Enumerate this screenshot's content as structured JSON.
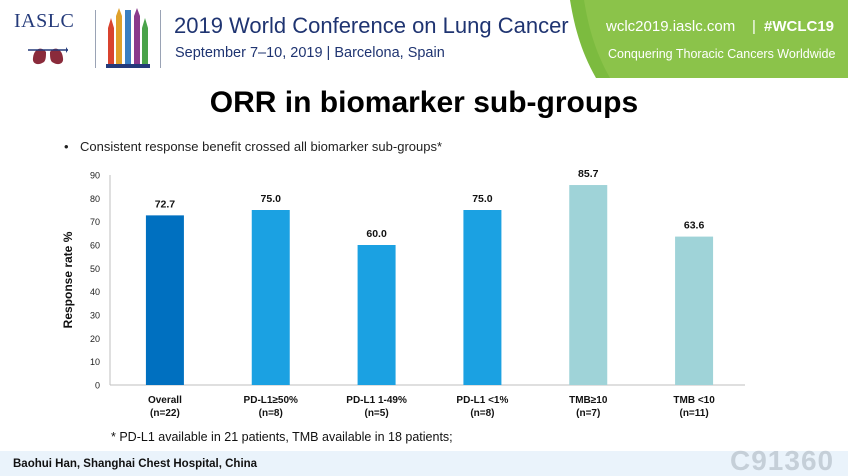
{
  "header": {
    "org_name": "IASLC",
    "conference_title": "2019 World Conference on Lung Cancer",
    "conference_subtitle": "September 7–10, 2019 | Barcelona, Spain",
    "site_url": "wclc2019.iaslc.com",
    "separator": "|",
    "hashtag": "#WCLC19",
    "tagline": "Conquering Thoracic Cancers Worldwide",
    "panel_color": "#8bc34a"
  },
  "slide": {
    "title": "ORR in biomarker sub-groups",
    "bullet": "Consistent response benefit crossed all biomarker sub-groups*",
    "bullet_marker": "•",
    "footnote": "* PD-L1 available in 21 patients, TMB available in 18 patients;"
  },
  "footer": {
    "presenter": "Baohui Han, Shanghai Chest Hospital, China",
    "watermark": "C91360"
  },
  "chart_data": {
    "type": "bar",
    "title": "",
    "xlabel": "",
    "ylabel": "Response rate %",
    "ylim": [
      0,
      90
    ],
    "yticks": [
      0,
      10,
      20,
      30,
      40,
      50,
      60,
      70,
      80,
      90
    ],
    "grid": false,
    "categories": [
      {
        "name": "Overall",
        "n": "(n=22)",
        "value": 72.7,
        "label": "72.7",
        "color": "#0070c0"
      },
      {
        "name": "PD-L1≥50%",
        "n": "(n=8)",
        "value": 75.0,
        "label": "75.0",
        "color": "#1ba1e2"
      },
      {
        "name": "PD-L1 1-49%",
        "n": "(n=5)",
        "value": 60.0,
        "label": "60.0",
        "color": "#1ba1e2"
      },
      {
        "name": "PD-L1 <1%",
        "n": "(n=8)",
        "value": 75.0,
        "label": "75.0",
        "color": "#1ba1e2"
      },
      {
        "name": "TMB≥10",
        "n": "(n=7)",
        "value": 85.7,
        "label": "85.7",
        "color": "#9fd3d8"
      },
      {
        "name": "TMB <10",
        "n": "(n=11)",
        "value": 63.6,
        "label": "63.6",
        "color": "#9fd3d8"
      }
    ]
  }
}
